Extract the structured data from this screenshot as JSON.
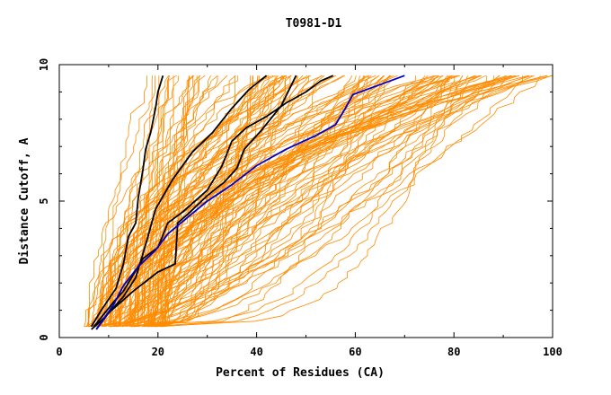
{
  "chart_data": {
    "type": "line",
    "title": "T0981-D1",
    "xlabel": "Percent of Residues (CA)",
    "ylabel": "Distance Cutoff, A",
    "xlim": [
      0,
      100
    ],
    "ylim": [
      0,
      10
    ],
    "x_ticks": [
      "0",
      "20",
      "40",
      "60",
      "80",
      "100"
    ],
    "y_ticks": [
      "0",
      "5",
      "10"
    ],
    "grid": false,
    "background_curves": {
      "count": 140,
      "color": "#ff8c00",
      "x_at_cutoff_0_4_range": [
        5,
        21
      ],
      "x_at_cutoff_9_5_range": [
        17,
        100
      ]
    },
    "series": [
      {
        "color": "#000000",
        "x": [
          6.5,
          8.5,
          11.5,
          13,
          14,
          15.5,
          16,
          17,
          17.5,
          18.5,
          19.5,
          20,
          21
        ],
        "y": [
          0.4,
          1.0,
          1.8,
          2.7,
          3.7,
          4.2,
          5.1,
          6.2,
          6.9,
          7.5,
          8.4,
          9.0,
          9.6
        ]
      },
      {
        "color": "#000000",
        "x": [
          6.5,
          9,
          13,
          15.5,
          17.5,
          19.5,
          23,
          27,
          31,
          35,
          38.5,
          42
        ],
        "y": [
          0.3,
          0.7,
          1.5,
          2.2,
          3.4,
          4.7,
          5.8,
          6.8,
          7.5,
          8.4,
          9.1,
          9.6
        ]
      },
      {
        "color": "#000000",
        "x": [
          7.5,
          10,
          15,
          20,
          23.5,
          24,
          26.5,
          30,
          33.5,
          36,
          37.5,
          41,
          45,
          48
        ],
        "y": [
          0.3,
          0.9,
          1.7,
          2.4,
          2.7,
          4.2,
          4.6,
          5.2,
          5.7,
          6.2,
          6.9,
          7.6,
          8.5,
          9.6
        ]
      },
      {
        "color": "#000000",
        "x": [
          7,
          11,
          13,
          15,
          17,
          20,
          22,
          25,
          30,
          33,
          35,
          38,
          42,
          46,
          50,
          53,
          55.5
        ],
        "y": [
          0.4,
          1.3,
          1.7,
          2.3,
          2.9,
          3.3,
          4.2,
          4.6,
          5.4,
          6.3,
          7.2,
          7.7,
          8.1,
          8.6,
          9.0,
          9.4,
          9.6
        ]
      },
      {
        "color": "#0000cc",
        "x": [
          7.5,
          11,
          13,
          16,
          19.5,
          22,
          26,
          30,
          35,
          40,
          46,
          52,
          56,
          58,
          59.5,
          64,
          70
        ],
        "y": [
          0.3,
          1.2,
          1.9,
          2.6,
          3.2,
          3.8,
          4.4,
          5.0,
          5.6,
          6.3,
          6.9,
          7.4,
          7.8,
          8.4,
          8.9,
          9.2,
          9.6
        ]
      }
    ]
  }
}
